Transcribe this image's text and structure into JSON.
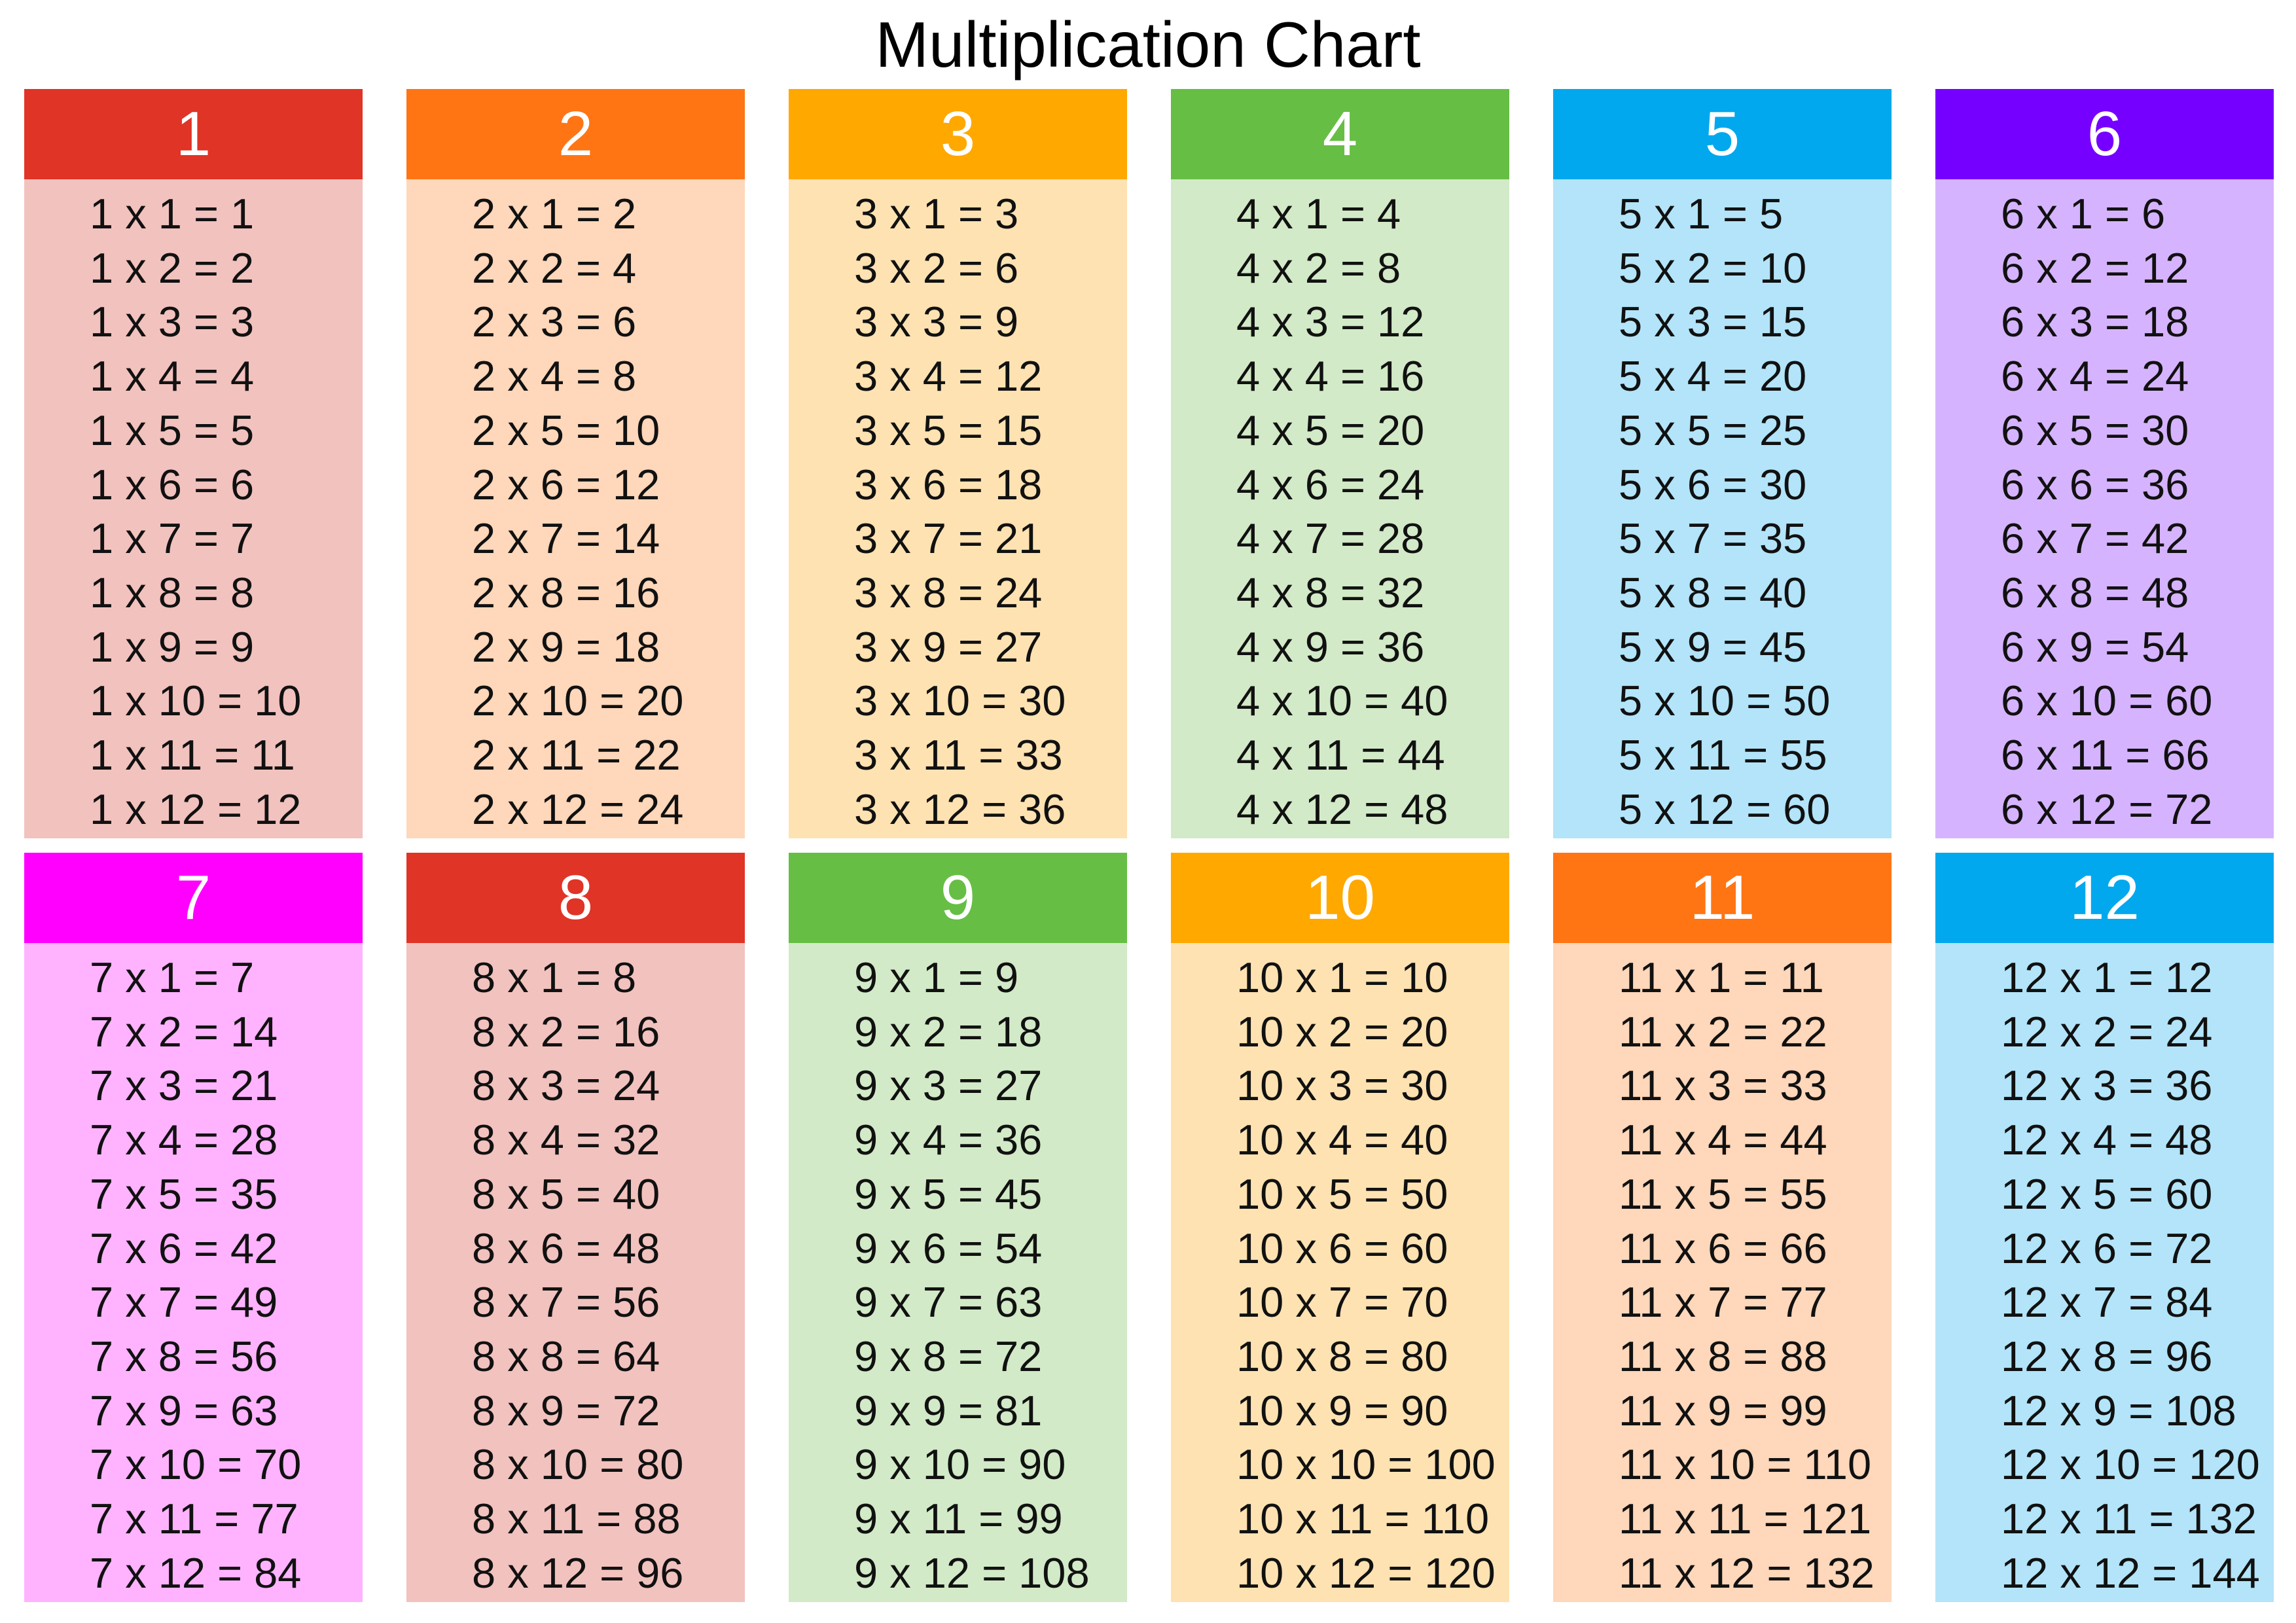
{
  "title": "Multiplication Chart",
  "tables": [
    {
      "number": "1",
      "header_color": "#E03426",
      "body_color": "#F2C2BE",
      "facts": [
        "1 x 1 = 1",
        "1 x 2 = 2",
        "1 x 3 = 3",
        "1 x 4 = 4",
        "1 x 5 = 5",
        "1 x 6 = 6",
        "1 x 7 = 7",
        "1 x 8 = 8",
        "1 x 9 = 9",
        "1 x 10 = 10",
        "1 x 11 = 11",
        "1 x 12 = 12"
      ]
    },
    {
      "number": "2",
      "header_color": "#FF7514",
      "body_color": "#FFD7BA",
      "facts": [
        "2 x 1 = 2",
        "2 x 2 = 4",
        "2 x 3 = 6",
        "2 x 4 = 8",
        "2 x 5 = 10",
        "2 x 6 = 12",
        "2 x 7 = 14",
        "2 x 8 = 16",
        "2 x 9 = 18",
        "2 x 10 = 20",
        "2 x 11 = 22",
        "2 x 12 = 24"
      ]
    },
    {
      "number": "3",
      "header_color": "#FFA800",
      "body_color": "#FFE2B2",
      "facts": [
        "3 x 1 = 3",
        "3 x 2 = 6",
        "3 x 3 = 9",
        "3 x 4 = 12",
        "3 x 5 = 15",
        "3 x 6 = 18",
        "3 x 7 = 21",
        "3 x 8 = 24",
        "3 x 9 = 27",
        "3 x 10 = 30",
        "3 x 11 = 33",
        "3 x 12 = 36"
      ]
    },
    {
      "number": "4",
      "header_color": "#67BE45",
      "body_color": "#D2EAC7",
      "facts": [
        "4 x 1 = 4",
        "4 x 2 = 8",
        "4 x 3 = 12",
        "4 x 4 = 16",
        "4 x 5 = 20",
        "4 x 6 = 24",
        "4 x 7 = 28",
        "4 x 8 = 32",
        "4 x 9 = 36",
        "4 x 10 = 40",
        "4 x 11 = 44",
        "4 x 12 = 48"
      ]
    },
    {
      "number": "5",
      "header_color": "#02A8EE",
      "body_color": "#B3E4F9",
      "facts": [
        "5 x 1 = 5",
        "5 x 2 = 10",
        "5 x 3 = 15",
        "5 x 4 = 20",
        "5 x 5 = 25",
        "5 x 6 = 30",
        "5 x 7 = 35",
        "5 x 8 = 40",
        "5 x 9 = 45",
        "5 x 10 = 50",
        "5 x 11 = 55",
        "5 x 12 = 60"
      ]
    },
    {
      "number": "6",
      "header_color": "#7600FF",
      "body_color": "#D6B3FF",
      "facts": [
        "6 x 1 = 6",
        "6 x 2 = 12",
        "6 x 3 = 18",
        "6 x 4 = 24",
        "6 x 5 = 30",
        "6 x 6 = 36",
        "6 x 7 = 42",
        "6 x 8 = 48",
        "6 x 9 = 54",
        "6 x 10 = 60",
        "6 x 11 = 66",
        "6 x 12 = 72"
      ]
    },
    {
      "number": "7",
      "header_color": "#FF00FF",
      "body_color": "#FFB3FF",
      "facts": [
        "7 x 1 = 7",
        "7 x 2 = 14",
        "7 x 3 = 21",
        "7 x 4 = 28",
        "7 x 5 = 35",
        "7 x 6 = 42",
        "7 x 7 = 49",
        "7 x 8 = 56",
        "7 x 9 = 63",
        "7 x 10 = 70",
        "7 x 11 = 77",
        "7 x 12 = 84"
      ]
    },
    {
      "number": "8",
      "header_color": "#E03426",
      "body_color": "#F2C2BE",
      "facts": [
        "8 x 1 = 8",
        "8 x 2 = 16",
        "8 x 3 = 24",
        "8 x 4 = 32",
        "8 x 5 = 40",
        "8 x 6 = 48",
        "8 x 7 = 56",
        "8 x 8 = 64",
        "8 x 9 = 72",
        "8 x 10 = 80",
        "8 x 11 = 88",
        "8 x 12 = 96"
      ]
    },
    {
      "number": "9",
      "header_color": "#67BE45",
      "body_color": "#D2EAC7",
      "facts": [
        "9 x 1 = 9",
        "9 x 2 = 18",
        "9 x 3 = 27",
        "9 x 4 = 36",
        "9 x 5 = 45",
        "9 x 6 = 54",
        "9 x 7 = 63",
        "9 x 8 = 72",
        "9 x 9 = 81",
        "9 x 10 = 90",
        "9 x 11 = 99",
        "9 x 12 = 108"
      ]
    },
    {
      "number": "10",
      "header_color": "#FFA800",
      "body_color": "#FFE2B2",
      "facts": [
        "10 x 1 = 10",
        "10 x 2 = 20",
        "10 x 3 = 30",
        "10 x 4 = 40",
        "10 x 5 = 50",
        "10 x 6 = 60",
        "10 x 7 = 70",
        "10 x 8 = 80",
        "10 x 9 = 90",
        "10 x 10 = 100",
        "10 x 11 = 110",
        "10 x 12 = 120"
      ]
    },
    {
      "number": "11",
      "header_color": "#FF7514",
      "body_color": "#FFD7BA",
      "facts": [
        "11 x 1 = 11",
        "11 x 2 = 22",
        "11 x 3 = 33",
        "11 x 4 = 44",
        "11 x 5 = 55",
        "11 x 6 = 66",
        "11 x 7 = 77",
        "11 x 8 = 88",
        "11 x 9 = 99",
        "11 x 10 = 110",
        "11 x 11 = 121",
        "11 x 12 = 132"
      ]
    },
    {
      "number": "12",
      "header_color": "#02A8EE",
      "body_color": "#B3E4F9",
      "facts": [
        "12 x 1 = 12",
        "12 x 2 = 24",
        "12 x 3 = 36",
        "12 x 4 = 48",
        "12 x 5 = 60",
        "12 x 6 = 72",
        "12 x 7 = 84",
        "12 x 8 = 96",
        "12 x 9 = 108",
        "12 x 10 = 120",
        "12 x 11 = 132",
        "12 x 12 = 144"
      ]
    }
  ]
}
